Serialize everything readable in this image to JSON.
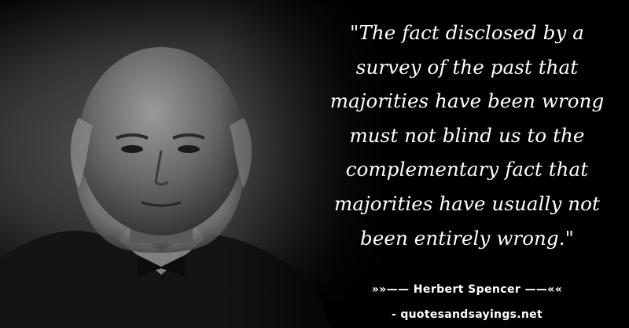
{
  "quote": {
    "lines": [
      "\"The fact disclosed by a",
      "survey of the past that",
      "majorities have been wrong",
      "must not blind us to the",
      "complementary fact that",
      "majorities have usually not",
      "been entirely wrong.\""
    ]
  },
  "attribution": {
    "author_line": "»»—— Herbert Spencer ——««",
    "site_line": "- quotesandsayings.net"
  },
  "colors": {
    "background": "#000000",
    "text": "#ffffff"
  }
}
